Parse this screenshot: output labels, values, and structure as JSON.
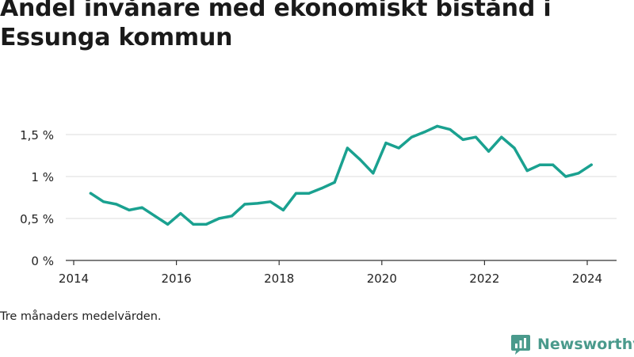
{
  "title": "Andel invånare med ekonomiskt bistånd i Essunga kommun",
  "caption": "Tre månaders medelvärden.",
  "brand": {
    "name": "Newsworthy",
    "icon": "newsworthy-logo-icon",
    "color": "#4a9a8c"
  },
  "colors": {
    "line": "#1aa190",
    "grid": "#dddddd",
    "axis": "#333333"
  },
  "chart_data": {
    "type": "line",
    "title": "Andel invånare med ekonomiskt bistånd i Essunga kommun",
    "xlabel": "",
    "ylabel": "",
    "xlim": [
      2014,
      2024.55
    ],
    "ylim": [
      0,
      1.5
    ],
    "x_ticks": [
      2014,
      2016,
      2018,
      2020,
      2022,
      2024
    ],
    "x_tick_labels": [
      "2014",
      "2016",
      "2018",
      "2020",
      "2022",
      "2024"
    ],
    "y_ticks": [
      0,
      0.5,
      1,
      1.5
    ],
    "y_tick_labels": [
      "0 %",
      "0,5 %",
      "1 %",
      "1,5 %"
    ],
    "grid": true,
    "legend": "none",
    "series": [
      {
        "x": [
          2014.33,
          2014.58,
          2014.83,
          2015.08,
          2015.33,
          2015.58,
          2015.83,
          2016.08,
          2016.33,
          2016.58,
          2016.83,
          2017.08,
          2017.33,
          2017.58,
          2017.83,
          2018.08,
          2018.33,
          2018.58,
          2018.83,
          2019.08,
          2019.33,
          2019.58,
          2019.83,
          2020.08,
          2020.33,
          2020.58,
          2020.83,
          2021.08,
          2021.33,
          2021.58,
          2021.83,
          2022.08,
          2022.33,
          2022.58,
          2022.83,
          2023.08,
          2023.33,
          2023.58,
          2023.83,
          2024.08
        ],
        "values": [
          0.8,
          0.7,
          0.67,
          0.6,
          0.63,
          0.53,
          0.43,
          0.56,
          0.43,
          0.43,
          0.5,
          0.53,
          0.67,
          0.68,
          0.7,
          0.6,
          0.8,
          0.8,
          0.86,
          0.93,
          1.34,
          1.2,
          1.04,
          1.4,
          1.34,
          1.47,
          1.53,
          1.6,
          1.56,
          1.44,
          1.47,
          1.3,
          1.47,
          1.34,
          1.07,
          1.14,
          1.14,
          1.0,
          1.04,
          1.14
        ]
      }
    ]
  }
}
